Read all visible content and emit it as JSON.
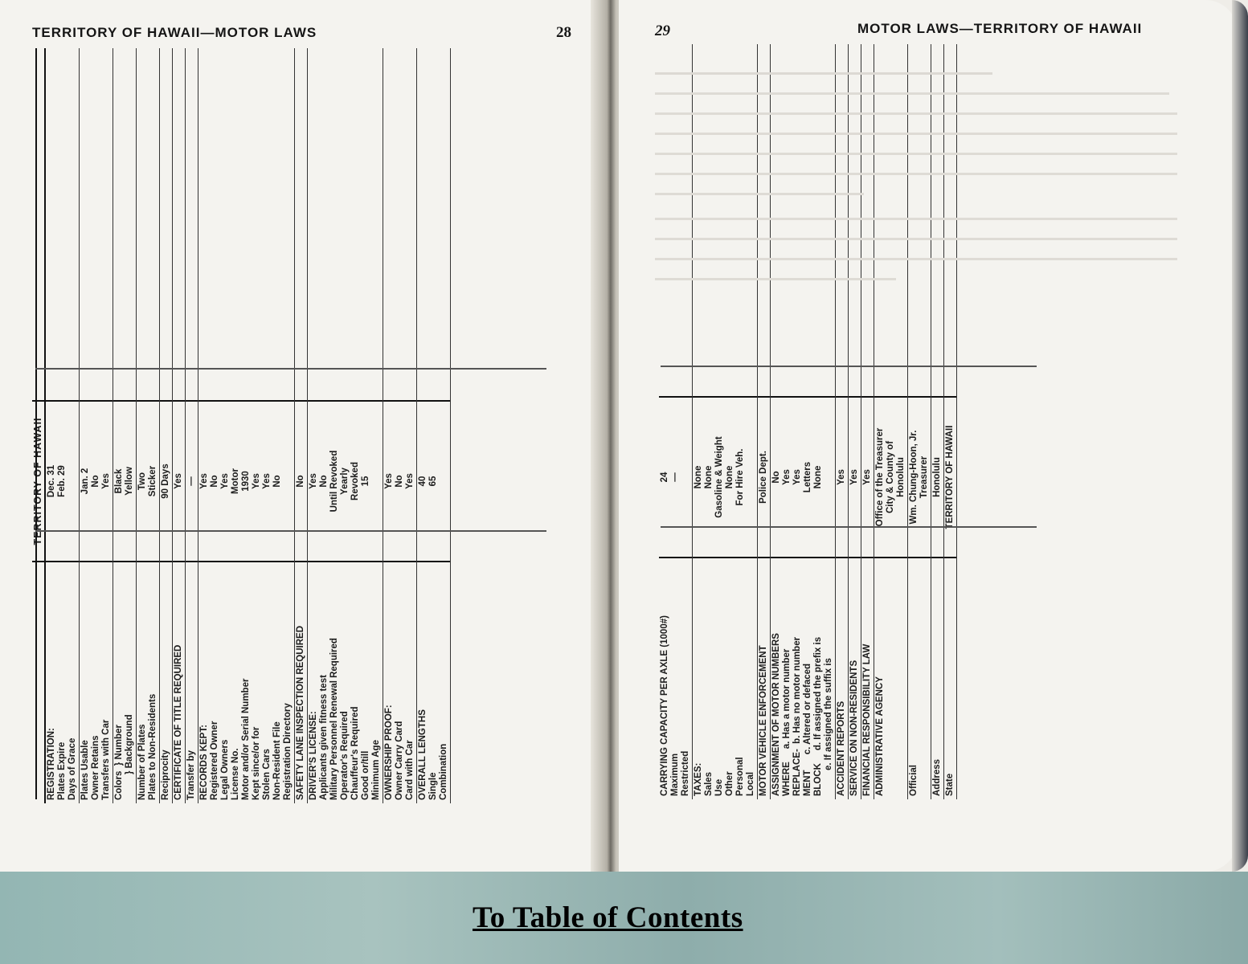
{
  "left_page": {
    "header": "TERRITORY OF HAWAII—MOTOR LAWS",
    "page_number": "28",
    "column_header": "TERRITORY OF HAWAII",
    "rows": [
      {
        "label_head": "REGISTRATION:",
        "labels": [
          "Plates Expire",
          "Days of Grace"
        ],
        "values": [
          "Dec. 31",
          "Feb. 29"
        ]
      },
      {
        "label_head": "",
        "labels": [
          "Plates Usable",
          "Owner Retains",
          "Transfers with Car"
        ],
        "values": [
          "Jan. 2",
          "No",
          "Yes"
        ]
      },
      {
        "label_head": "",
        "labels": [
          "Colors  } Number",
          "          } Background"
        ],
        "values": [
          "Black",
          "Yellow"
        ]
      },
      {
        "label_head": "",
        "labels": [
          "Number of Plates",
          "Plates to Non-Residents"
        ],
        "values": [
          "Two",
          "Sticker"
        ]
      },
      {
        "label_head": "",
        "labels": [
          "Reciprocity"
        ],
        "values": [
          "90 Days"
        ]
      },
      {
        "label_head": "CERTIFICATE OF TITLE REQUIRED",
        "labels": [],
        "values": [
          "Yes"
        ]
      },
      {
        "label_head": "",
        "labels": [
          "Transfer by"
        ],
        "values": [
          "—"
        ]
      },
      {
        "label_head": "RECORDS KEPT:",
        "labels": [
          "Registered Owner",
          "Legal Owners",
          "License No.",
          "Motor and/or Serial Number",
          "Kept since/or for",
          "Stolen Cars",
          "Non-Resident File",
          "Registration Directory"
        ],
        "values": [
          "Yes",
          "No",
          "Yes",
          "Motor",
          "1930",
          "Yes",
          "Yes",
          "No"
        ]
      },
      {
        "label_head": "SAFETY LANE INSPECTION REQUIRED",
        "labels": [],
        "values": [
          "No"
        ]
      },
      {
        "label_head": "DRIVER'S LICENSE:",
        "labels": [
          "Applicants given fitness test",
          "Military Personnel Renewal Required",
          "Operator's Required",
          "Chauffeur's Required",
          "Good or/till",
          "Minimum Age"
        ],
        "values": [
          "Yes",
          "No",
          "Until Revoked",
          "Yearly",
          "Revoked",
          "15"
        ]
      },
      {
        "label_head": "OWNERSHIP PROOF:",
        "labels": [
          "Owner Carry Card",
          "Card with Car"
        ],
        "values": [
          "Yes",
          "No",
          "Yes"
        ]
      },
      {
        "label_head": "OVERALL LENGTHS",
        "labels": [
          "Single",
          "Combination"
        ],
        "values": [
          "40",
          "65"
        ]
      }
    ]
  },
  "right_page": {
    "header": "MOTOR LAWS—TERRITORY OF HAWAII",
    "page_number": "29",
    "rows": [
      {
        "label_head": "CARRYING CAPACITY Per Axle (1000#)",
        "labels": [
          "Maximum",
          "Restricted"
        ],
        "values": [
          "24",
          "—"
        ]
      },
      {
        "label_head": "TAXES:",
        "labels": [
          "Sales",
          "Use",
          "Other",
          "Personal",
          "Local"
        ],
        "values": [
          "None",
          "None",
          "Gasoline & Weight",
          "None",
          "For Hire Veh."
        ]
      },
      {
        "label_head": "MOTOR VEHICLE ENFORCEMENT",
        "labels": [],
        "values": [
          "Police Dept."
        ]
      },
      {
        "label_head": "ASSIGNMENT OF MOTOR NUMBERS",
        "labels": [
          "WHERE     a. Has a motor number",
          "REPLACE-  b. Has no motor number",
          "MENT      c. Altered or defaced",
          "BLOCK     d. If assigned the prefix is",
          "          e. If assigned the suffix is"
        ],
        "values": [
          "No",
          "Yes",
          "Yes",
          "Letters",
          "None"
        ]
      },
      {
        "label_head": "ACCIDENT REPORTS",
        "labels": [],
        "values": [
          "Yes"
        ]
      },
      {
        "label_head": "SERVICE ON NON-RESIDENTS",
        "labels": [],
        "values": [
          "Yes"
        ]
      },
      {
        "label_head": "FINANCIAL RESPONSIBILITY LAW",
        "labels": [],
        "values": [
          "Yes"
        ]
      },
      {
        "label_head": "ADMINISTRATIVE AGENCY",
        "labels": [],
        "values": [
          "Office of the Treasurer",
          "City & County of",
          "Honolulu"
        ]
      },
      {
        "label_head": "",
        "labels": [
          "Official"
        ],
        "values": [
          "Wm. Chung-Hoon, Jr.",
          "Treasurer"
        ]
      },
      {
        "label_head": "",
        "labels": [
          "Address"
        ],
        "values": [
          "Honolulu"
        ]
      },
      {
        "label_head": "",
        "labels": [
          "State"
        ],
        "values": [
          "TERRITORY OF HAWAII"
        ]
      }
    ]
  },
  "footer": {
    "toc_link": "To Table of Contents"
  }
}
